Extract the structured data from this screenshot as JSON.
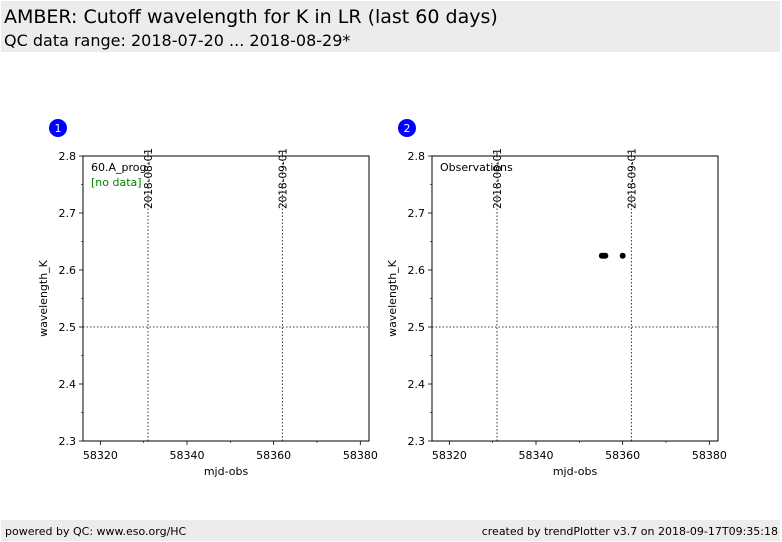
{
  "header": {
    "title": "AMBER: Cutoff wavelength for K in LR (last 60 days)",
    "subtitle": "QC data range: 2018-07-20 ... 2018-08-29*"
  },
  "footer": {
    "left": "powered by QC: www.eso.org/HC",
    "right": "created by trendPlotter v3.7 on 2018-09-17T09:35:18"
  },
  "colors": {
    "header_bg": "#ececec",
    "badge": "#0000ff",
    "no_data": "#008000",
    "points": "#000000"
  },
  "chart_data": [
    {
      "type": "scatter",
      "badge": "1",
      "label": "60.A_prog",
      "note": "[no data]",
      "xlabel": "mjd-obs",
      "ylabel": "wavelength_K",
      "xlim": [
        58316,
        58382
      ],
      "ylim": [
        2.3,
        2.8
      ],
      "x_ticks": [
        58320,
        58340,
        58360,
        58380
      ],
      "y_ticks": [
        2.3,
        2.4,
        2.5,
        2.6,
        2.7,
        2.8
      ],
      "date_markers": [
        {
          "x": 58331,
          "label": "2018-08-01"
        },
        {
          "x": 58362,
          "label": "2018-09-01"
        }
      ],
      "hline": 2.5,
      "points": []
    },
    {
      "type": "scatter",
      "badge": "2",
      "label": "Observations",
      "note": "",
      "xlabel": "mjd-obs",
      "ylabel": "wavelength_K",
      "xlim": [
        58316,
        58382
      ],
      "ylim": [
        2.3,
        2.8
      ],
      "x_ticks": [
        58320,
        58340,
        58360,
        58380
      ],
      "y_ticks": [
        2.3,
        2.4,
        2.5,
        2.6,
        2.7,
        2.8
      ],
      "date_markers": [
        {
          "x": 58331,
          "label": "2018-08-01"
        },
        {
          "x": 58362,
          "label": "2018-09-01"
        }
      ],
      "hline": 2.5,
      "points": [
        {
          "x": 58355.2,
          "y": 2.625
        },
        {
          "x": 58355.6,
          "y": 2.625
        },
        {
          "x": 58356.0,
          "y": 2.625
        },
        {
          "x": 58360.0,
          "y": 2.625
        }
      ]
    }
  ]
}
